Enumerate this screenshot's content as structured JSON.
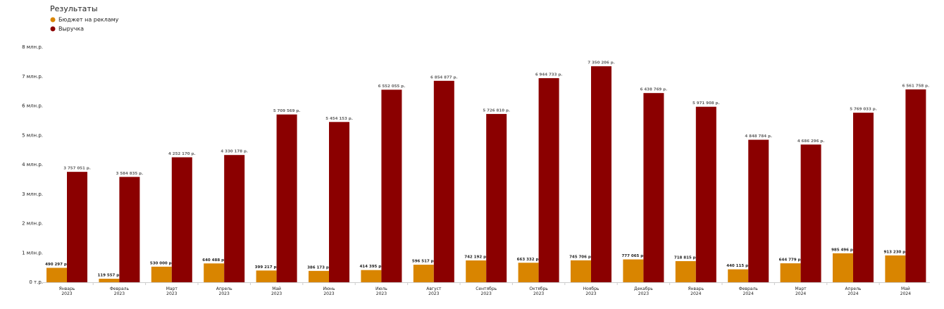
{
  "chart_data": {
    "type": "bar",
    "title": "Результаты",
    "categories": [
      [
        "Январь",
        "2023"
      ],
      [
        "Февраль",
        "2023"
      ],
      [
        "Март",
        "2023"
      ],
      [
        "Апрель",
        "2023"
      ],
      [
        "Май",
        "2023"
      ],
      [
        "Июнь",
        "2023"
      ],
      [
        "Июль",
        "2023"
      ],
      [
        "Август",
        "2023"
      ],
      [
        "Сентябрь",
        "2023"
      ],
      [
        "Октябрь",
        "2023"
      ],
      [
        "Ноябрь",
        "2023"
      ],
      [
        "Декабрь",
        "2023"
      ],
      [
        "Январь",
        "2024"
      ],
      [
        "Февраль",
        "2024"
      ],
      [
        "Март",
        "2024"
      ],
      [
        "Апрель",
        "2024"
      ],
      [
        "Май",
        "2024"
      ]
    ],
    "series": [
      {
        "name": "Бюджет на рекламу",
        "color": "#d98500",
        "values": [
          490297,
          119557,
          530000,
          640488,
          399217,
          386173,
          414395,
          596517,
          742192,
          663332,
          745706,
          777065,
          718815,
          440115,
          644779,
          985496,
          913230
        ],
        "value_labels": [
          "490 297 р.",
          "119 557 р.",
          "530 000 р.",
          "640 488 р.",
          "399 217 р.",
          "386 173 р.",
          "414 395 р.",
          "596 517 р.",
          "742 192 р.",
          "663 332 р.",
          "745 706 р.",
          "777 065 р.",
          "718 815 р.",
          "440 115 р.",
          "644 779 р.",
          "985 496 р.",
          "913 230 р."
        ]
      },
      {
        "name": "Выручка",
        "color": "#8b0000",
        "values": [
          3757051,
          3584835,
          4252170,
          4330178,
          5709569,
          5454153,
          6552055,
          6854877,
          5726810,
          6944733,
          7350206,
          6438769,
          5971908,
          4848784,
          4686296,
          5769033,
          6561758
        ],
        "value_labels": [
          "3 757 051 р.",
          "3 584 835 р.",
          "4 252 170 р.",
          "4 330 178 р.",
          "5 709 569 р.",
          "5 454 153 р.",
          "6 552 055 р.",
          "6 854 877 р.",
          "5 726 810 р.",
          "6 944 733 р.",
          "7 350 206 р.",
          "6 438 769 р.",
          "5 971 908 р.",
          "4 848 784 р.",
          "4 686 296 р.",
          "5 769 033 р.",
          "6 561 758 р."
        ]
      }
    ],
    "ylim": [
      0,
      8000000
    ],
    "yticks": [
      {
        "value": 0,
        "label": "0 т.р."
      },
      {
        "value": 1000000,
        "label": "1 млн.р."
      },
      {
        "value": 2000000,
        "label": "2 млн.р."
      },
      {
        "value": 3000000,
        "label": "3 млн.р."
      },
      {
        "value": 4000000,
        "label": "4 млн.р."
      },
      {
        "value": 5000000,
        "label": "5 млн.р."
      },
      {
        "value": 6000000,
        "label": "6 млн.р."
      },
      {
        "value": 7000000,
        "label": "7 млн.р."
      },
      {
        "value": 8000000,
        "label": "8 млн.р."
      }
    ]
  }
}
